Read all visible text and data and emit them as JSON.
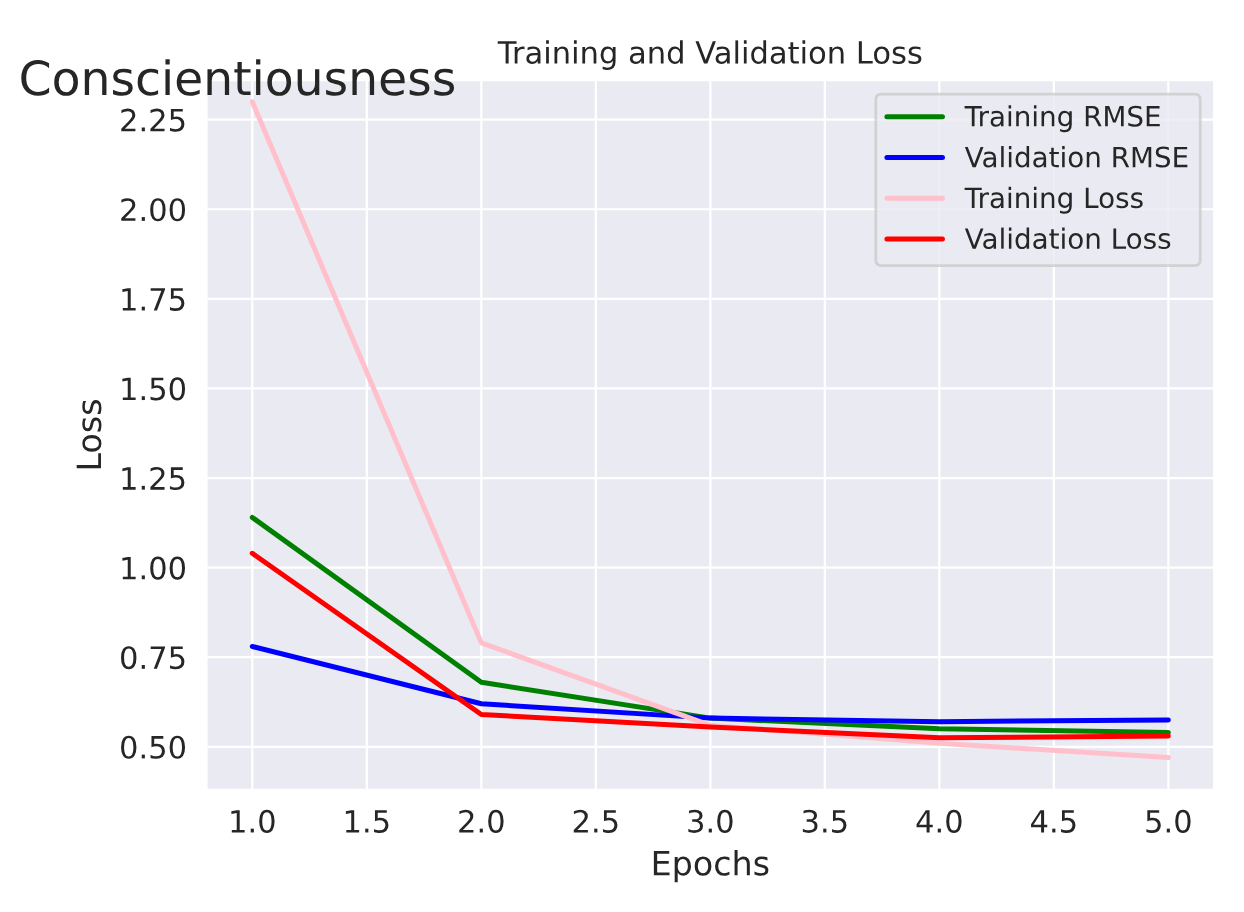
{
  "chart_data": {
    "type": "line",
    "title": "Training and Validation Loss",
    "xlabel": "Epochs",
    "ylabel": "Loss",
    "annotations": [
      "Conscientiousness"
    ],
    "x": [
      1,
      2,
      3,
      4,
      5
    ],
    "series": [
      {
        "name": "Training RMSE",
        "color": "#008000",
        "values": [
          1.14,
          0.68,
          0.58,
          0.55,
          0.54
        ]
      },
      {
        "name": "Validation RMSE",
        "color": "#0000ff",
        "values": [
          0.78,
          0.62,
          0.58,
          0.57,
          0.575
        ]
      },
      {
        "name": "Training Loss",
        "color": "#ffc0cb",
        "values": [
          2.3,
          0.79,
          0.56,
          0.51,
          0.47
        ]
      },
      {
        "name": "Validation Loss",
        "color": "#ff0000",
        "values": [
          1.04,
          0.59,
          0.555,
          0.525,
          0.53
        ]
      }
    ],
    "xlim": [
      0.8,
      5.2
    ],
    "xticks": [
      {
        "value": 1,
        "label": "1.0"
      },
      {
        "value": 1.5,
        "label": "1.5"
      },
      {
        "value": 2,
        "label": "2.0"
      },
      {
        "value": 2.5,
        "label": "2.5"
      },
      {
        "value": 3,
        "label": "3.0"
      },
      {
        "value": 3.5,
        "label": "3.5"
      },
      {
        "value": 4,
        "label": "4.0"
      },
      {
        "value": 4.5,
        "label": "4.5"
      },
      {
        "value": 5,
        "label": "5.0"
      }
    ],
    "ylim": [
      0.38,
      2.36
    ],
    "yticks": [
      {
        "value": 0.5,
        "label": "0.50"
      },
      {
        "value": 0.75,
        "label": "0.75"
      },
      {
        "value": 1,
        "label": "1.00"
      },
      {
        "value": 1.25,
        "label": "1.25"
      },
      {
        "value": 1.5,
        "label": "1.50"
      },
      {
        "value": 1.75,
        "label": "1.75"
      },
      {
        "value": 2,
        "label": "2.00"
      },
      {
        "value": 2.25,
        "label": "2.25"
      }
    ],
    "grid": true,
    "legend": "top right",
    "line_style": "solid",
    "marker": "none"
  }
}
